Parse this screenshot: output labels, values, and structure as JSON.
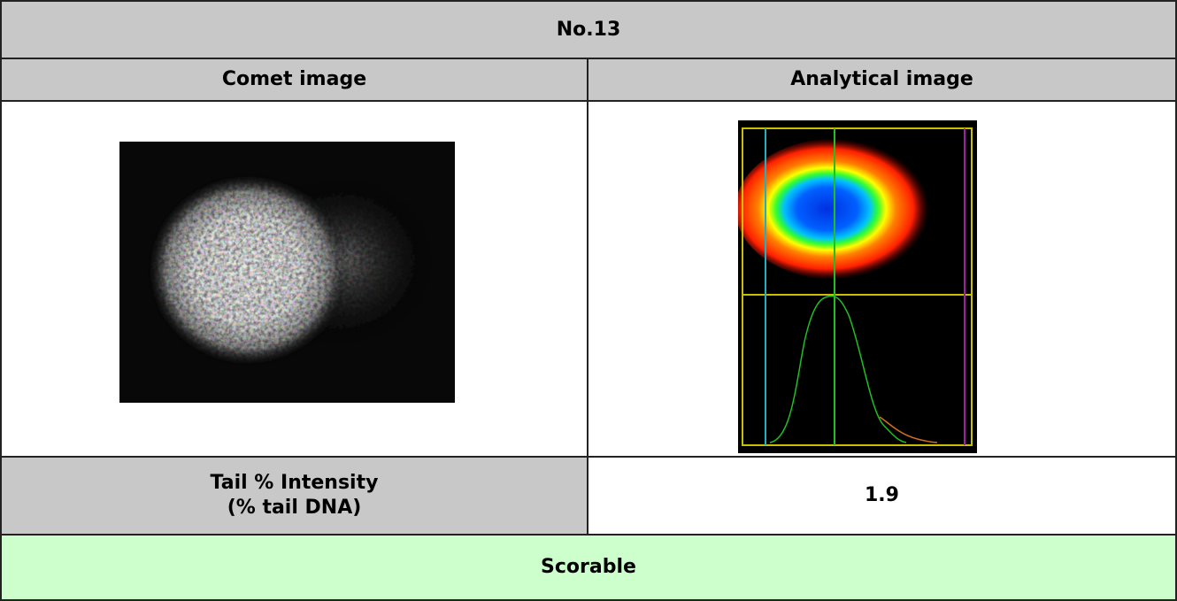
{
  "header": {
    "title": "No.13"
  },
  "columns": [
    "Comet image",
    "Analytical image"
  ],
  "result_row": {
    "label_lines": [
      "Tail % Intensity",
      "(% tail DNA)"
    ],
    "value": "1.9"
  },
  "footer": {
    "status": "Scorable"
  }
}
